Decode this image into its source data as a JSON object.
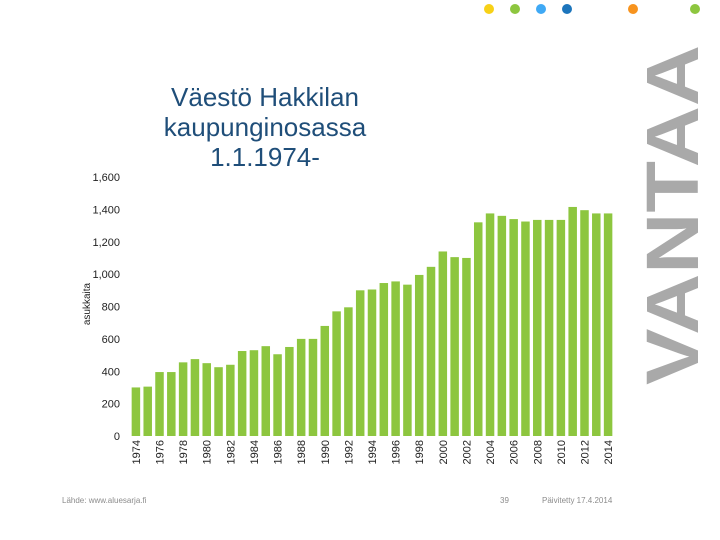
{
  "slide": {
    "title_line1": "Väestö Hakkilan kaupunginosassa",
    "title_line2": "1.1.1974-",
    "source": "Lähde: www.aluesarja.fi",
    "page_number": "39",
    "updated": "Päivitetty 17.4.2014",
    "brand": "VANTAA",
    "colors": {
      "bar": "#8dc63f",
      "title": "#1f4e79",
      "brand": "#a9a9a9",
      "dots": [
        "#f7d117",
        "#8dc63f",
        "#3fa9f5",
        "#1c75bc",
        "#f7931e",
        "#8dc63f"
      ]
    }
  },
  "chart_data": {
    "type": "bar",
    "ylabel": "asukkaita",
    "xlabel": "",
    "ylim": [
      0,
      1600
    ],
    "yticks": [
      0,
      200,
      400,
      600,
      800,
      1000,
      1200,
      1400,
      1600
    ],
    "ytick_labels": [
      "0",
      "200",
      "400",
      "600",
      "800",
      "1,000",
      "1,200",
      "1,400",
      "1,600"
    ],
    "categories": [
      "1974",
      "1975",
      "1976",
      "1977",
      "1978",
      "1979",
      "1980",
      "1981",
      "1982",
      "1983",
      "1984",
      "1985",
      "1986",
      "1987",
      "1988",
      "1989",
      "1990",
      "1991",
      "1992",
      "1993",
      "1994",
      "1995",
      "1996",
      "1997",
      "1998",
      "1999",
      "2000",
      "2001",
      "2002",
      "2003",
      "2004",
      "2005",
      "2006",
      "2007",
      "2008",
      "2009",
      "2010",
      "2011",
      "2012",
      "2013",
      "2014"
    ],
    "category_labels": [
      "1974",
      "",
      "1976",
      "",
      "1978",
      "",
      "1980",
      "",
      "1982",
      "",
      "1984",
      "",
      "1986",
      "",
      "1988",
      "",
      "1990",
      "",
      "1992",
      "",
      "1994",
      "",
      "1996",
      "",
      "1998",
      "",
      "2000",
      "",
      "2002",
      "",
      "2004",
      "",
      "2006",
      "",
      "2008",
      "",
      "2010",
      "",
      "2012",
      "",
      "2014"
    ],
    "values": [
      300,
      305,
      395,
      395,
      455,
      475,
      450,
      425,
      440,
      525,
      530,
      555,
      505,
      550,
      600,
      600,
      680,
      770,
      795,
      900,
      905,
      945,
      955,
      935,
      995,
      1045,
      1140,
      1105,
      1100,
      1320,
      1375,
      1360,
      1340,
      1325,
      1335,
      1335,
      1335,
      1415,
      1395,
      1375,
      1375
    ],
    "grid": false,
    "legend": "none"
  }
}
